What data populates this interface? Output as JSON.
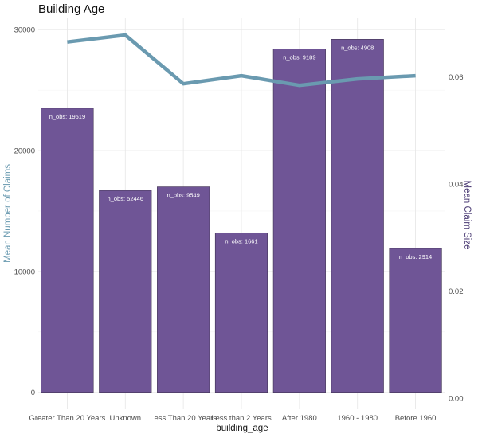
{
  "chart_data": {
    "type": "bar",
    "title": "Building Age",
    "xlabel": "building_age",
    "ylabel_left": "Mean Number of Claims",
    "ylabel_right": "Mean Claim Size",
    "categories": [
      "Greater Than 20 Years",
      "Unknown",
      "Less Than 20 Years",
      "Less than 2 Years",
      "After 1980",
      "1960 - 1980",
      "Before 1960"
    ],
    "bar_label_prefix": "n_obs:",
    "series": [
      {
        "values": [
          23500,
          16700,
          17000,
          13200,
          28400,
          29200,
          11900
        ],
        "axis": "left",
        "kind": "bar"
      },
      {
        "values": [
          0.0665,
          0.0678,
          0.0587,
          0.0602,
          0.0584,
          0.0596,
          0.0602
        ],
        "axis": "right",
        "kind": "line"
      }
    ],
    "bar_labels": [
      "19519",
      "52446",
      "9549",
      "1661",
      "9189",
      "4908",
      "2914"
    ],
    "ylim_left": [
      -1400,
      31000
    ],
    "ylim_right": [
      -0.00208,
      0.07107
    ],
    "yticks_left": [
      0,
      10000,
      20000,
      30000
    ],
    "yticks_right": [
      0.0,
      0.02,
      0.04,
      0.06
    ],
    "yticks_right_labels": [
      "0.00",
      "0.02",
      "0.04",
      "0.06"
    ],
    "grid": true,
    "colors": {
      "bar_fill": "#6f5596",
      "bar_stroke": "#3e3050",
      "line": "#6a9ab0",
      "left_axis_title": "#6a9ab0",
      "right_axis_title": "#4a3a73"
    }
  }
}
